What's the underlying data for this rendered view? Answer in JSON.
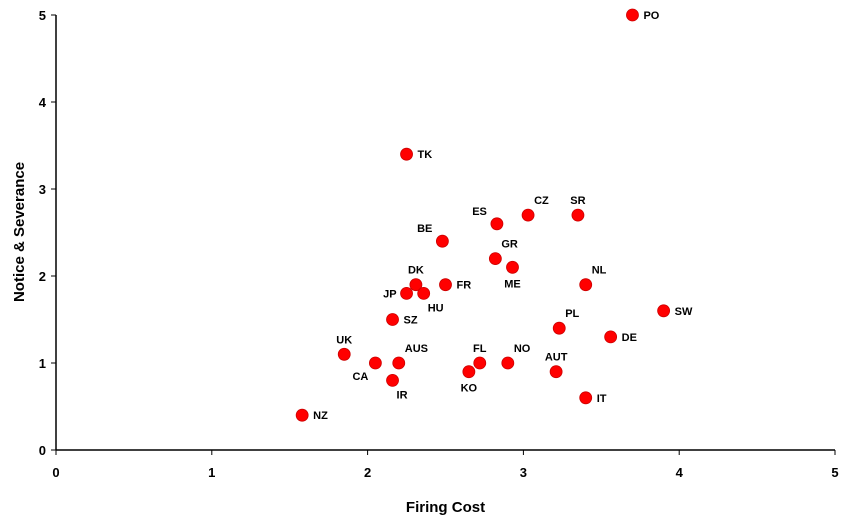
{
  "chart_data": {
    "type": "scatter",
    "title": "",
    "xlabel": "Firing Cost",
    "ylabel": "Notice & Severance",
    "xlim": [
      0,
      5
    ],
    "ylim": [
      0,
      5
    ],
    "xticks": [
      "0",
      "1",
      "2",
      "3",
      "4",
      "5"
    ],
    "yticks": [
      "0",
      "1",
      "2",
      "3",
      "4",
      "5"
    ],
    "grid": false,
    "legend": "none",
    "marker_color": "#ff0000",
    "marker_edge": "#cc0000",
    "points": [
      {
        "label": "PO",
        "x": 3.7,
        "y": 5.0,
        "pos": "right"
      },
      {
        "label": "TK",
        "x": 2.25,
        "y": 3.4,
        "pos": "right"
      },
      {
        "label": "ES",
        "x": 2.83,
        "y": 2.6,
        "pos": "above-left"
      },
      {
        "label": "CZ",
        "x": 3.03,
        "y": 2.7,
        "pos": "above-right"
      },
      {
        "label": "SR",
        "x": 3.35,
        "y": 2.7,
        "pos": "above"
      },
      {
        "label": "BE",
        "x": 2.48,
        "y": 2.4,
        "pos": "above-left"
      },
      {
        "label": "GR",
        "x": 2.82,
        "y": 2.2,
        "pos": "above-right"
      },
      {
        "label": "ME",
        "x": 2.93,
        "y": 2.1,
        "pos": "below"
      },
      {
        "label": "NL",
        "x": 3.4,
        "y": 1.9,
        "pos": "above-right"
      },
      {
        "label": "DK",
        "x": 2.31,
        "y": 1.9,
        "pos": "above"
      },
      {
        "label": "FR",
        "x": 2.5,
        "y": 1.9,
        "pos": "right"
      },
      {
        "label": "JP",
        "x": 2.25,
        "y": 1.8,
        "pos": "left"
      },
      {
        "label": "HU",
        "x": 2.36,
        "y": 1.8,
        "pos": "below-right"
      },
      {
        "label": "SW",
        "x": 3.9,
        "y": 1.6,
        "pos": "right"
      },
      {
        "label": "SZ",
        "x": 2.16,
        "y": 1.5,
        "pos": "right"
      },
      {
        "label": "PL",
        "x": 3.23,
        "y": 1.4,
        "pos": "above-right"
      },
      {
        "label": "DE",
        "x": 3.56,
        "y": 1.3,
        "pos": "right"
      },
      {
        "label": "UK",
        "x": 1.85,
        "y": 1.1,
        "pos": "above"
      },
      {
        "label": "AUS",
        "x": 2.2,
        "y": 1.0,
        "pos": "above-right"
      },
      {
        "label": "CA",
        "x": 2.05,
        "y": 1.0,
        "pos": "below-left"
      },
      {
        "label": "FL",
        "x": 2.72,
        "y": 1.0,
        "pos": "above"
      },
      {
        "label": "NO",
        "x": 2.9,
        "y": 1.0,
        "pos": "above-right"
      },
      {
        "label": "KO",
        "x": 2.65,
        "y": 0.9,
        "pos": "below"
      },
      {
        "label": "AUT",
        "x": 3.21,
        "y": 0.9,
        "pos": "above"
      },
      {
        "label": "IR",
        "x": 2.16,
        "y": 0.8,
        "pos": "below-right"
      },
      {
        "label": "IT",
        "x": 3.4,
        "y": 0.6,
        "pos": "right"
      },
      {
        "label": "NZ",
        "x": 1.58,
        "y": 0.4,
        "pos": "right"
      }
    ]
  }
}
